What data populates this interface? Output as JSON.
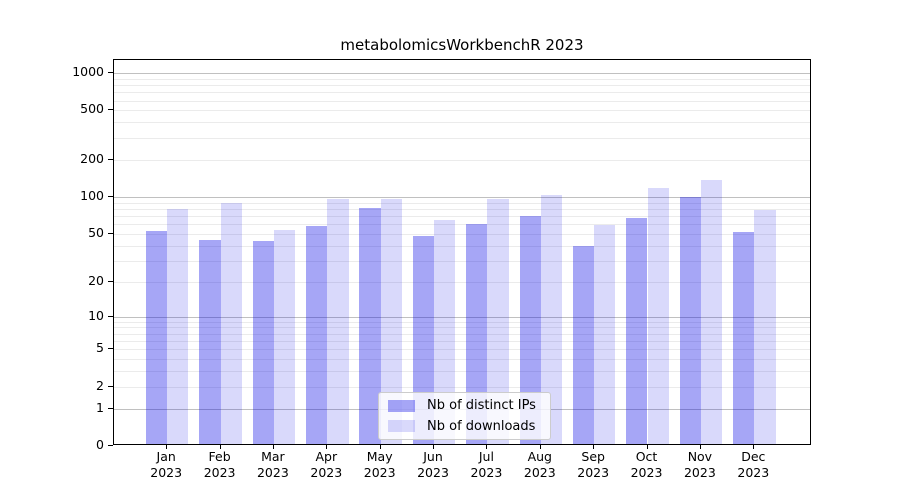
{
  "chart_data": {
    "type": "bar",
    "title": "metabolomicsWorkbenchR 2023",
    "categories": [
      "Jan",
      "Feb",
      "Mar",
      "Apr",
      "May",
      "Jun",
      "Jul",
      "Aug",
      "Sep",
      "Oct",
      "Nov",
      "Dec"
    ],
    "x_sublabel": "2023",
    "series": [
      {
        "name": "Nb of distinct IPs",
        "color": "rgba(0,0,230,0.35)",
        "values": [
          51,
          43,
          42,
          56,
          78,
          46,
          58,
          67,
          38,
          65,
          97,
          50
        ]
      },
      {
        "name": "Nb of downloads",
        "color": "rgba(0,0,230,0.15)",
        "values": [
          77,
          86,
          52,
          92,
          92,
          62,
          92,
          100,
          57,
          113,
          132,
          75
        ]
      }
    ],
    "y_ticks": [
      0,
      1,
      2,
      5,
      10,
      20,
      50,
      100,
      200,
      500,
      1000
    ],
    "y_scale": "log10(1+x)",
    "ylim": [
      0,
      1273
    ],
    "xlabel": "",
    "ylabel": "",
    "grid": true,
    "legend_position": "lower center"
  },
  "colors": {
    "background": "#ffffff",
    "grid_major": "#c0c0c0",
    "grid_minor": "#ebebeb",
    "axis": "#000000",
    "legend_bg": "rgba(255,255,255,0.8)",
    "legend_border": "#cccccc",
    "text": "#000000"
  }
}
